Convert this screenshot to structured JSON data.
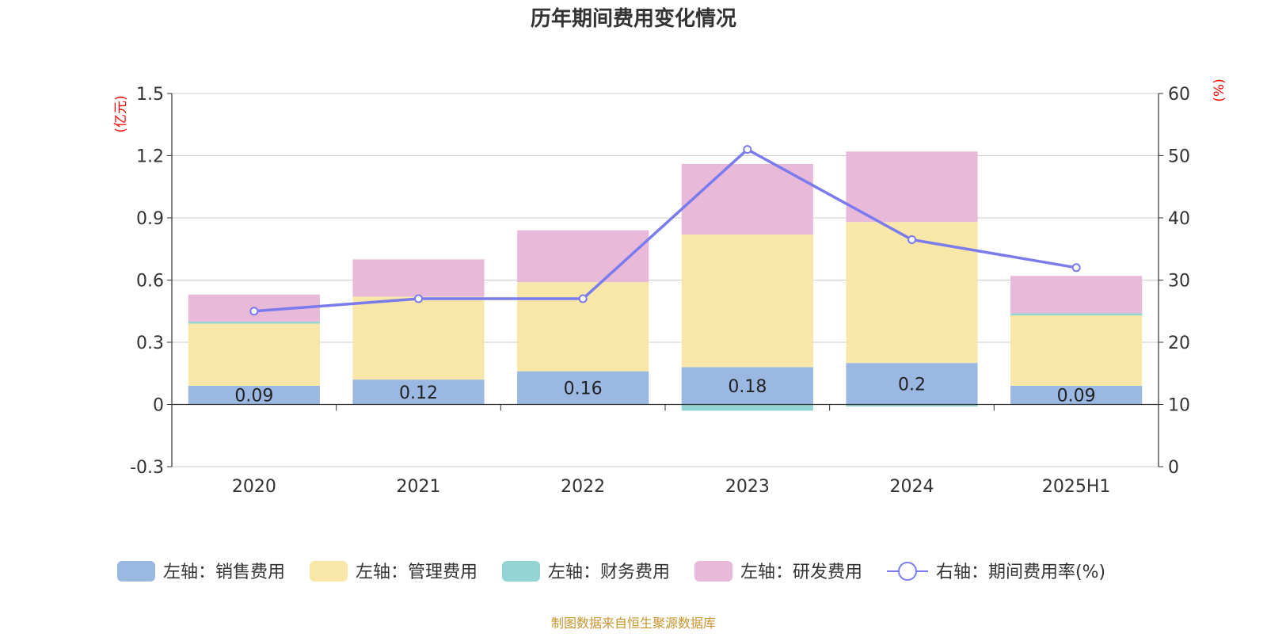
{
  "chart_data": {
    "type": "bar",
    "title": "历年期间费用变化情况",
    "categories": [
      "2020",
      "2021",
      "2022",
      "2023",
      "2024",
      "2025H1"
    ],
    "y_left": {
      "unit": "(亿元)",
      "range": [
        -0.3,
        1.5
      ],
      "ticks": [
        "1.5",
        "1.2",
        "0.9",
        "0.6",
        "0.3",
        "0",
        "-0.3"
      ]
    },
    "y_right": {
      "unit": "(%)",
      "range": [
        0,
        60
      ],
      "ticks": [
        "60",
        "50",
        "40",
        "30",
        "20",
        "10",
        "0"
      ]
    },
    "series": [
      {
        "name": "左轴：销售费用",
        "kind": "bar",
        "axis": "left",
        "color": "#9bb8e3",
        "values": [
          0.09,
          0.12,
          0.16,
          0.18,
          0.2,
          0.09
        ],
        "labels": [
          "0.09",
          "0.12",
          "0.16",
          "0.18",
          "0.2",
          "0.09"
        ]
      },
      {
        "name": "左轴：管理费用",
        "kind": "bar",
        "axis": "left",
        "color": "#f8e7a8",
        "values": [
          0.3,
          0.4,
          0.43,
          0.64,
          0.68,
          0.34
        ]
      },
      {
        "name": "左轴：财务费用",
        "kind": "bar",
        "axis": "left",
        "color": "#95d4d4",
        "values": [
          0.01,
          0.0,
          0.0,
          -0.03,
          -0.01,
          0.01
        ]
      },
      {
        "name": "左轴：研发费用",
        "kind": "bar",
        "axis": "left",
        "color": "#e8b9d8",
        "values": [
          0.13,
          0.18,
          0.25,
          0.34,
          0.34,
          0.18
        ]
      },
      {
        "name": "右轴：期间费用率(%)",
        "kind": "line",
        "axis": "right",
        "color": "#7b7bee",
        "values": [
          25.0,
          27.0,
          27.0,
          51.0,
          36.5,
          32.0
        ]
      }
    ],
    "legend_position": "bottom",
    "grid": true
  },
  "footer": {
    "source": "制图数据来自恒生聚源数据库"
  }
}
